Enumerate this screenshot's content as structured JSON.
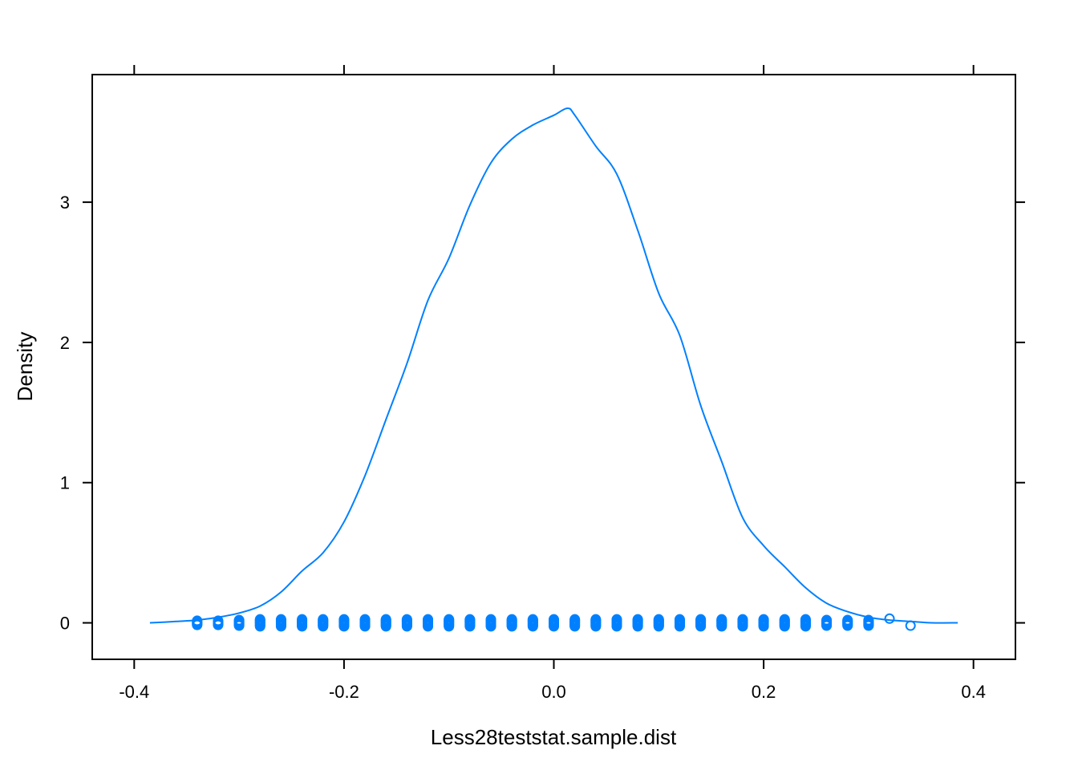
{
  "chart_data": {
    "type": "line",
    "title": "",
    "xlabel": "Less28teststat.sample.dist",
    "ylabel": "Density",
    "xlim": [
      -0.44,
      0.44
    ],
    "ylim": [
      -0.26,
      3.91
    ],
    "x_ticks": [
      -0.4,
      -0.2,
      0.0,
      0.2,
      0.4
    ],
    "x_tick_labels": [
      "-0.4",
      "-0.2",
      "0.0",
      "0.2",
      "0.4"
    ],
    "y_ticks": [
      0,
      1,
      2,
      3
    ],
    "y_tick_labels": [
      "0",
      "1",
      "2",
      "3"
    ],
    "grid": false,
    "legend": "none",
    "colors": {
      "series": "#0080ff",
      "axis": "#000000"
    },
    "series": [
      {
        "x": [
          -0.385,
          -0.36,
          -0.34,
          -0.32,
          -0.3,
          -0.28,
          -0.26,
          -0.24,
          -0.22,
          -0.2,
          -0.18,
          -0.16,
          -0.14,
          -0.12,
          -0.1,
          -0.08,
          -0.06,
          -0.04,
          -0.02,
          0.0,
          0.013,
          0.02,
          0.04,
          0.06,
          0.08,
          0.1,
          0.12,
          0.14,
          0.16,
          0.18,
          0.2,
          0.22,
          0.24,
          0.26,
          0.28,
          0.3,
          0.32,
          0.34,
          0.36,
          0.385
        ],
        "y": [
          0.0,
          0.01,
          0.02,
          0.04,
          0.07,
          0.12,
          0.22,
          0.37,
          0.5,
          0.72,
          1.05,
          1.45,
          1.85,
          2.3,
          2.6,
          2.98,
          3.28,
          3.45,
          3.55,
          3.62,
          3.67,
          3.62,
          3.4,
          3.2,
          2.8,
          2.35,
          2.05,
          1.55,
          1.15,
          0.75,
          0.55,
          0.4,
          0.25,
          0.14,
          0.08,
          0.04,
          0.02,
          0.01,
          0.0,
          0.0
        ]
      }
    ],
    "rug": {
      "x": [
        -0.34,
        -0.32,
        -0.3,
        -0.28,
        -0.26,
        -0.24,
        -0.22,
        -0.2,
        -0.18,
        -0.16,
        -0.14,
        -0.12,
        -0.1,
        -0.08,
        -0.06,
        -0.04,
        -0.02,
        0.0,
        0.02,
        0.04,
        0.06,
        0.08,
        0.1,
        0.12,
        0.14,
        0.16,
        0.18,
        0.2,
        0.22,
        0.24,
        0.26,
        0.28,
        0.3,
        0.32,
        0.34
      ],
      "spread": [
        0.03,
        0.03,
        0.04,
        0.05,
        0.05,
        0.05,
        0.05,
        0.05,
        0.05,
        0.05,
        0.05,
        0.05,
        0.05,
        0.05,
        0.05,
        0.05,
        0.05,
        0.05,
        0.05,
        0.05,
        0.05,
        0.05,
        0.05,
        0.05,
        0.05,
        0.05,
        0.05,
        0.05,
        0.05,
        0.05,
        0.04,
        0.04,
        0.04,
        0.0,
        0.0
      ],
      "center": [
        0,
        0,
        0,
        0,
        0,
        0,
        0,
        0,
        0,
        0,
        0,
        0,
        0,
        0,
        0,
        0,
        0,
        0,
        0,
        0,
        0,
        0,
        0,
        0,
        0,
        0,
        0,
        0,
        0,
        0,
        0,
        0,
        0,
        0.03,
        -0.02
      ]
    }
  }
}
